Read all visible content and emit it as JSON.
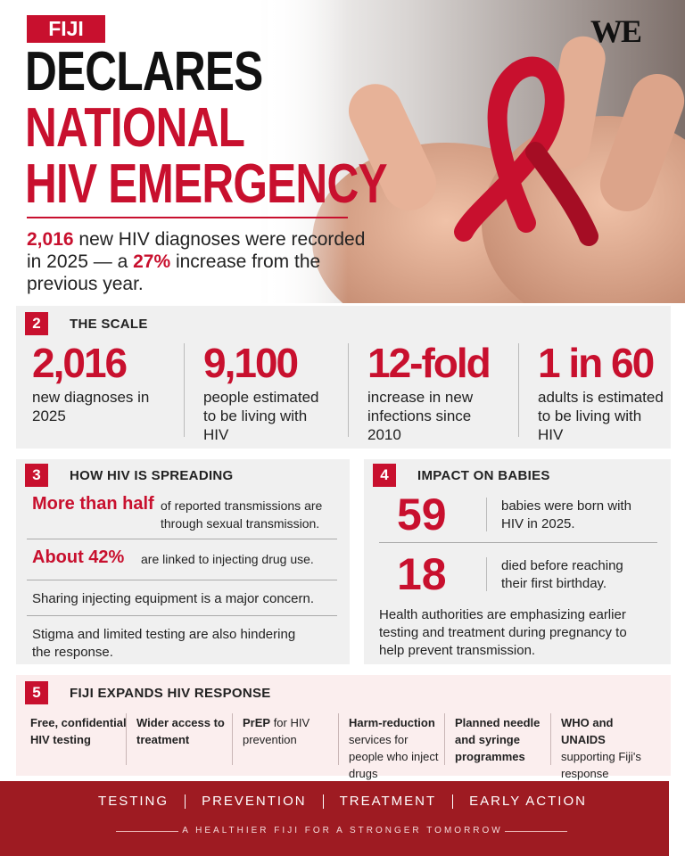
{
  "header": {
    "badge": "FIJI",
    "title_lines": [
      {
        "text": "DECLARES"
      },
      {
        "text": "NATIONAL",
        "accent": true
      },
      {
        "text": "HIV EMERGENCY",
        "accent": true
      }
    ],
    "logo": "WE",
    "lead": [
      {
        "text": "2,016",
        "highlight": true
      },
      {
        "text": " new HIV diagnoses were recorded in 2025 — a "
      },
      {
        "text": "27%",
        "highlight": true
      },
      {
        "text": " increase from the previous year."
      }
    ]
  },
  "scale": {
    "number": "2",
    "title": "THE SCALE",
    "stats": [
      {
        "value": "2,016",
        "label": "new diagnoses in 2025"
      },
      {
        "value": "9,100",
        "label": "people estimated to be living with HIV"
      },
      {
        "value": "12-fold",
        "label": "increase in new infections since 2010"
      },
      {
        "value": "1 in 60",
        "label": "adults is estimated to be living with HIV"
      }
    ]
  },
  "spreading": {
    "number": "3",
    "title": "HOW HIV IS SPREADING",
    "items": [
      {
        "lead": "More than half",
        "text": "of reported transmissions are through sexual transmission."
      },
      {
        "lead": "About 42%",
        "text": "are linked to injecting drug use."
      },
      {
        "text": "Sharing injecting equipment is a major concern."
      },
      {
        "text": "Stigma and limited testing are also hindering the response."
      }
    ]
  },
  "babies": {
    "number": "4",
    "title": "IMPACT ON BABIES",
    "stats": [
      {
        "value": "59",
        "label": "babies were born with HIV in 2025."
      },
      {
        "value": "18",
        "label": "died before reaching their first birthday."
      }
    ],
    "note": "Health authorities are emphasizing earlier testing and treatment during pregnancy to help prevent transmission."
  },
  "response": {
    "number": "5",
    "title": "FIJI EXPANDS HIV RESPONSE",
    "items": [
      [
        {
          "text": "Free, confidential HIV testing",
          "bold": true
        }
      ],
      [
        {
          "text": "Wider access to treatment",
          "bold": true
        }
      ],
      [
        {
          "text": "PrEP",
          "bold": true
        },
        {
          "text": " for HIV prevention"
        }
      ],
      [
        {
          "text": "Harm-reduction",
          "bold": true
        },
        {
          "text": " services for people who inject drugs"
        }
      ],
      [
        {
          "text": "Planned needle and syringe programmes",
          "bold": true
        }
      ],
      [
        {
          "text": "WHO and UNAIDS",
          "bold": true
        },
        {
          "text": " supporting Fiji's response"
        }
      ]
    ]
  },
  "footer": {
    "pillars": [
      "TESTING",
      "PREVENTION",
      "TREATMENT",
      "EARLY ACTION"
    ],
    "tagline": "A HEALTHIER FIJI FOR A STRONGER TOMORROW"
  }
}
